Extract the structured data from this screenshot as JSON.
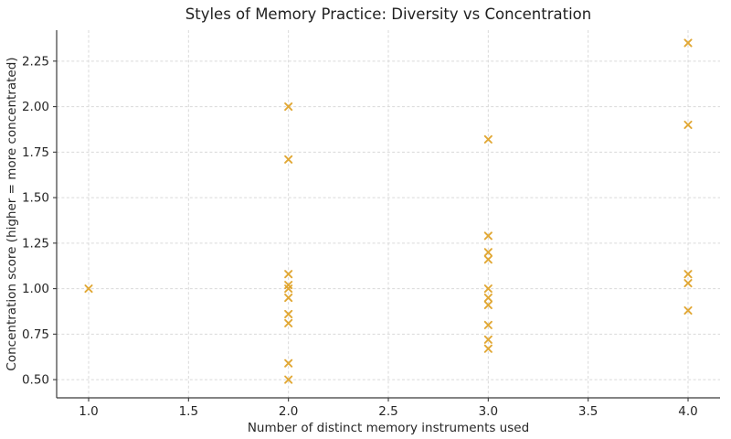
{
  "chart_data": {
    "type": "scatter",
    "title": "Styles of Memory Practice: Diversity vs Concentration",
    "xlabel": "Number of distinct memory instruments used",
    "ylabel": "Concentration score (higher = more concentrated)",
    "xlim": [
      0.84,
      4.16
    ],
    "ylim": [
      0.4,
      2.42
    ],
    "x_ticks": [
      1.0,
      1.5,
      2.0,
      2.5,
      3.0,
      3.5,
      4.0
    ],
    "x_tick_labels": [
      "1.0",
      "1.5",
      "2.0",
      "2.5",
      "3.0",
      "3.5",
      "4.0"
    ],
    "y_ticks": [
      0.5,
      0.75,
      1.0,
      1.25,
      1.5,
      1.75,
      2.0,
      2.25
    ],
    "y_tick_labels": [
      "0.50",
      "0.75",
      "1.00",
      "1.25",
      "1.50",
      "1.75",
      "2.00",
      "2.25"
    ],
    "grid": true,
    "grid_style": "dashed",
    "legend": "none",
    "marker": "x",
    "marker_color": "#DFA32B",
    "grid_color": "#d9d9d9",
    "spine_color": "#3b3b3b",
    "points": [
      [
        1,
        1.0
      ],
      [
        2,
        2.0
      ],
      [
        2,
        1.71
      ],
      [
        2,
        1.08
      ],
      [
        2,
        1.02
      ],
      [
        2,
        1.0
      ],
      [
        2,
        0.95
      ],
      [
        2,
        0.86
      ],
      [
        2,
        0.81
      ],
      [
        2,
        0.59
      ],
      [
        2,
        0.5
      ],
      [
        3,
        1.82
      ],
      [
        3,
        1.29
      ],
      [
        3,
        1.2
      ],
      [
        3,
        1.16
      ],
      [
        3,
        1.0
      ],
      [
        3,
        0.95
      ],
      [
        3,
        0.91
      ],
      [
        3,
        0.8
      ],
      [
        3,
        0.72
      ],
      [
        3,
        0.67
      ],
      [
        4,
        2.35
      ],
      [
        4,
        1.9
      ],
      [
        4,
        1.08
      ],
      [
        4,
        1.03
      ],
      [
        4,
        0.88
      ]
    ]
  }
}
